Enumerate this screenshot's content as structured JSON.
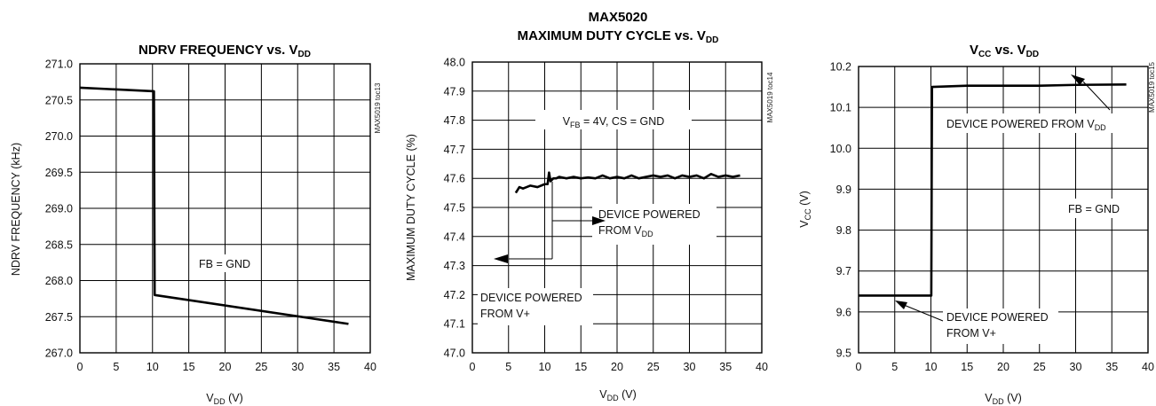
{
  "chart_data": [
    {
      "type": "line",
      "title": "NDRV FREQUENCY vs. V",
      "title_sub": "DD",
      "ylabel": "NDRV FREQUENCY (kHz)",
      "xlabel": "V",
      "xlabel_sub": "DD",
      "xlabel_unit": " (V)",
      "side_label": "MAX5019 toc13",
      "xlim": [
        0,
        40
      ],
      "ylim": [
        267.0,
        271.0
      ],
      "grid": true,
      "xticks": [
        "0",
        "5",
        "10",
        "15",
        "20",
        "25",
        "30",
        "35",
        "40"
      ],
      "yticks": [
        "267.0",
        "267.5",
        "268.0",
        "268.5",
        "269.0",
        "269.5",
        "270.0",
        "270.5",
        "271.0"
      ],
      "series": [
        {
          "x": [
            0,
            10.2,
            10.3,
            37
          ],
          "y": [
            270.67,
            270.62,
            267.8,
            267.4
          ]
        }
      ],
      "annotations": {
        "fb": "FB = GND"
      }
    },
    {
      "type": "line",
      "title_top": "MAX5020",
      "title": "MAXIMUM DUTY CYCLE vs. V",
      "title_sub": "DD",
      "ylabel": "MAXIMUM DUTY CYCLE (%)",
      "xlabel": "V",
      "xlabel_sub": "DD",
      "xlabel_unit": " (V)",
      "side_label": "MAX5019 toc14",
      "xlim": [
        0,
        40
      ],
      "ylim": [
        47.0,
        48.0
      ],
      "grid": true,
      "xticks": [
        "0",
        "5",
        "10",
        "15",
        "20",
        "25",
        "30",
        "35",
        "40"
      ],
      "yticks": [
        "47.0",
        "47.1",
        "47.2",
        "47.3",
        "47.4",
        "47.5",
        "47.6",
        "47.7",
        "47.8",
        "47.9",
        "48.0"
      ],
      "series": [
        {
          "x": [
            6,
            6.5,
            7,
            8,
            9,
            10,
            10.4,
            10.6,
            10.8,
            11.2,
            11.6,
            12,
            13,
            14,
            15,
            16,
            17,
            18,
            19,
            20,
            21,
            22,
            23,
            24,
            25,
            26,
            27,
            28,
            29,
            30,
            31,
            32,
            33,
            34,
            35,
            36,
            37
          ],
          "y": [
            47.55,
            47.57,
            47.565,
            47.575,
            47.57,
            47.58,
            47.58,
            47.62,
            47.59,
            47.6,
            47.6,
            47.605,
            47.6,
            47.605,
            47.6,
            47.603,
            47.6,
            47.61,
            47.6,
            47.605,
            47.6,
            47.61,
            47.6,
            47.605,
            47.61,
            47.605,
            47.61,
            47.6,
            47.61,
            47.605,
            47.61,
            47.6,
            47.615,
            47.605,
            47.61,
            47.605,
            47.61
          ]
        }
      ],
      "annotations": {
        "cond_a": "V",
        "cond_sub": "FB",
        "cond_b": " = 4V, CS = GND",
        "dev1_line1": "DEVICE POWERED",
        "dev1_line2a": "FROM  V",
        "dev1_sub": "DD",
        "dev2_line1": "DEVICE POWERED",
        "dev2_line2": "FROM  V+"
      }
    },
    {
      "type": "line",
      "title": "V",
      "title_sub1": "CC",
      "title_mid": " vs. V",
      "title_sub2": "DD",
      "ylabel": "V",
      "ylabel_sub": "CC",
      "ylabel_unit": " (V)",
      "xlabel": "V",
      "xlabel_sub": "DD",
      "xlabel_unit": " (V)",
      "side_label": "MAX5019 toc15",
      "xlim": [
        0,
        40
      ],
      "ylim": [
        9.5,
        10.2
      ],
      "grid": true,
      "xticks": [
        "0",
        "5",
        "10",
        "15",
        "20",
        "25",
        "30",
        "35",
        "40"
      ],
      "yticks": [
        "9.5",
        "9.6",
        "9.7",
        "9.8",
        "9.9",
        "10.0",
        "10.1",
        "10.2"
      ],
      "series": [
        {
          "x": [
            0,
            5,
            10,
            10.05,
            10.15,
            15,
            20,
            25,
            30,
            37
          ],
          "y": [
            9.64,
            9.64,
            9.64,
            9.64,
            10.15,
            10.153,
            10.153,
            10.153,
            10.155,
            10.156
          ]
        }
      ],
      "annotations": {
        "dev1_a": "DEVICE POWERED FROM V",
        "dev1_sub": "DD",
        "fb": "FB = GND",
        "dev2_line1": "DEVICE POWERED",
        "dev2_line2": "FROM  V+"
      }
    }
  ]
}
